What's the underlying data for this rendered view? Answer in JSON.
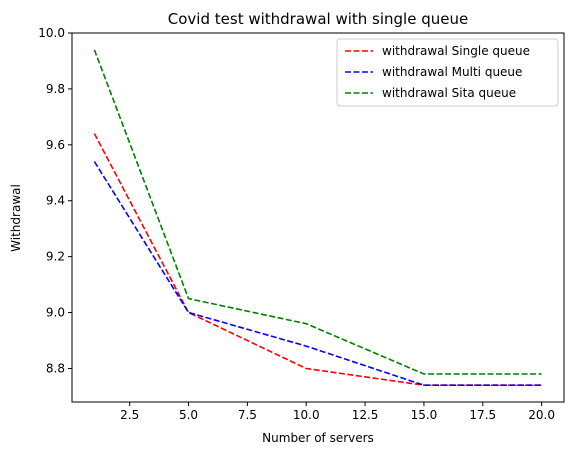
{
  "chart_data": {
    "type": "line",
    "title": "Covid test withdrawal with single queue",
    "xlabel": "Number of servers",
    "ylabel": "Withdrawal",
    "x": [
      1,
      5,
      10,
      15,
      20
    ],
    "xlim": [
      0.05,
      20.95
    ],
    "ylim": [
      8.68,
      10.0
    ],
    "xticks": [
      2.5,
      5.0,
      7.5,
      10.0,
      12.5,
      15.0,
      17.5,
      20.0
    ],
    "xtick_labels": [
      "2.5",
      "5.0",
      "7.5",
      "10.0",
      "12.5",
      "15.0",
      "17.5",
      "20.0"
    ],
    "yticks": [
      8.8,
      9.0,
      9.2,
      9.4,
      9.6,
      9.8,
      10.0
    ],
    "ytick_labels": [
      "8.8",
      "9.0",
      "9.2",
      "9.4",
      "9.6",
      "9.8",
      "10.0"
    ],
    "grid": false,
    "legend_position": "top-right",
    "series": [
      {
        "name": "withdrawal Single queue",
        "color": "#ff0000",
        "style": "dashed",
        "values": [
          9.64,
          9.0,
          8.8,
          8.74,
          8.74
        ]
      },
      {
        "name": "withdrawal Multi queue",
        "color": "#0000ff",
        "style": "dashed",
        "values": [
          9.54,
          9.0,
          8.88,
          8.74,
          8.74
        ]
      },
      {
        "name": "withdrawal Sita queue",
        "color": "#008000",
        "style": "dashed",
        "values": [
          9.94,
          9.05,
          8.96,
          8.78,
          8.78
        ]
      }
    ]
  }
}
